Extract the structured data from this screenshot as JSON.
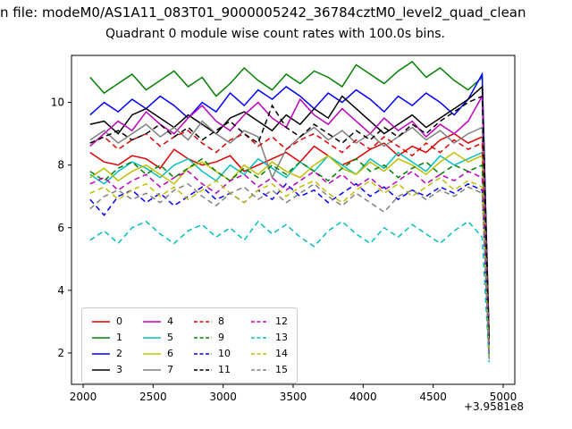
{
  "header": {
    "file_line": "n file: modeM0/AS1A11_083T01_9000005242_36784cztM0_level2_quad_clean"
  },
  "chart_data": {
    "type": "line",
    "title": "Quadrant 0 module wise count rates with 100.0s bins.",
    "xlabel": "",
    "ylabel": "",
    "x_offset_label": "+3.9581e8",
    "xlim": [
      1917,
      5083
    ],
    "ylim": [
      1.0,
      11.5
    ],
    "xticks": [
      2000,
      2500,
      3000,
      3500,
      4000,
      4500,
      5000
    ],
    "yticks": [
      2,
      4,
      6,
      8,
      10
    ],
    "grid": false,
    "legend": {
      "position": "lower-left",
      "ncol": 4,
      "fill_order": "column-major"
    },
    "x": [
      2050,
      2150,
      2250,
      2350,
      2450,
      2550,
      2650,
      2750,
      2850,
      2950,
      3050,
      3150,
      3250,
      3350,
      3450,
      3550,
      3650,
      3750,
      3850,
      3950,
      4050,
      4150,
      4250,
      4350,
      4450,
      4550,
      4650,
      4750,
      4850,
      4900
    ],
    "series": [
      {
        "name": "0",
        "color": "#e00000",
        "style": "solid",
        "values": [
          8.4,
          8.1,
          8.0,
          8.3,
          8.2,
          7.9,
          8.5,
          8.2,
          8.0,
          8.1,
          8.3,
          7.8,
          8.0,
          8.2,
          8.4,
          8.1,
          8.6,
          8.3,
          8.0,
          8.2,
          8.5,
          8.7,
          8.3,
          8.6,
          8.4,
          8.8,
          9.0,
          8.7,
          8.9,
          2.3
        ]
      },
      {
        "name": "1",
        "color": "#008000",
        "style": "solid",
        "values": [
          10.8,
          10.3,
          10.6,
          10.9,
          10.4,
          10.7,
          11.0,
          10.5,
          10.8,
          10.2,
          10.6,
          11.1,
          10.7,
          10.4,
          10.9,
          10.6,
          11.0,
          10.8,
          10.5,
          11.2,
          10.9,
          10.6,
          11.0,
          11.3,
          10.8,
          11.1,
          10.7,
          10.4,
          10.8,
          2.5
        ]
      },
      {
        "name": "2",
        "color": "#0000ff",
        "style": "solid",
        "values": [
          9.6,
          10.0,
          9.7,
          10.1,
          9.8,
          10.2,
          9.9,
          9.5,
          10.0,
          9.7,
          10.3,
          9.9,
          10.4,
          10.1,
          10.5,
          10.2,
          9.8,
          10.3,
          10.0,
          10.4,
          10.1,
          9.7,
          10.2,
          9.9,
          10.3,
          10.0,
          9.6,
          10.1,
          10.9,
          2.2
        ]
      },
      {
        "name": "3",
        "color": "#000000",
        "style": "solid",
        "values": [
          9.3,
          9.4,
          9.0,
          9.6,
          9.8,
          9.5,
          9.2,
          9.6,
          9.3,
          9.0,
          9.5,
          9.7,
          9.4,
          9.1,
          9.6,
          9.3,
          9.8,
          9.5,
          10.2,
          9.8,
          9.4,
          9.0,
          9.3,
          9.6,
          9.2,
          9.5,
          9.8,
          10.1,
          10.5,
          2.4
        ]
      },
      {
        "name": "4",
        "color": "#bf00bf",
        "style": "solid",
        "values": [
          8.6,
          9.0,
          9.4,
          9.1,
          9.7,
          9.3,
          9.0,
          9.5,
          9.9,
          9.4,
          9.1,
          9.6,
          10.0,
          9.5,
          9.2,
          10.1,
          9.6,
          9.3,
          9.8,
          9.4,
          9.0,
          9.5,
          9.1,
          9.4,
          8.9,
          9.3,
          9.0,
          9.4,
          10.2,
          2.1
        ]
      },
      {
        "name": "5",
        "color": "#00bfbf",
        "style": "solid",
        "values": [
          7.7,
          7.4,
          7.8,
          8.1,
          7.9,
          7.6,
          8.0,
          8.2,
          7.8,
          7.5,
          8.0,
          7.7,
          8.2,
          7.9,
          7.6,
          8.1,
          7.8,
          8.3,
          8.0,
          7.7,
          8.2,
          7.9,
          8.4,
          8.1,
          7.8,
          8.3,
          8.0,
          8.2,
          8.4,
          2.0
        ]
      },
      {
        "name": "6",
        "color": "#bfbf00",
        "style": "solid",
        "values": [
          7.6,
          7.9,
          7.5,
          7.8,
          8.0,
          7.7,
          7.4,
          7.9,
          8.1,
          7.8,
          7.5,
          8.0,
          7.7,
          8.1,
          7.8,
          7.6,
          8.0,
          8.3,
          7.9,
          7.7,
          8.1,
          7.8,
          8.2,
          8.0,
          7.7,
          8.1,
          8.4,
          8.1,
          8.3,
          2.1
        ]
      },
      {
        "name": "7",
        "color": "#808080",
        "style": "solid",
        "values": [
          8.8,
          9.1,
          8.7,
          9.0,
          9.3,
          8.9,
          9.2,
          8.8,
          9.4,
          9.0,
          8.7,
          9.1,
          8.9,
          7.6,
          8.5,
          8.9,
          9.2,
          8.8,
          9.1,
          8.7,
          9.0,
          8.6,
          8.9,
          9.2,
          8.8,
          9.1,
          8.7,
          9.0,
          9.2,
          2.2
        ]
      },
      {
        "name": "8",
        "color": "#e00000",
        "style": "dashed",
        "values": [
          8.7,
          8.9,
          8.5,
          8.8,
          9.0,
          8.6,
          8.9,
          9.1,
          8.7,
          8.4,
          8.8,
          9.0,
          8.6,
          8.9,
          8.5,
          8.8,
          9.0,
          8.7,
          8.4,
          8.8,
          8.5,
          8.9,
          8.6,
          8.3,
          8.7,
          8.4,
          8.8,
          8.5,
          8.7,
          2.0
        ]
      },
      {
        "name": "9",
        "color": "#008000",
        "style": "dashed",
        "values": [
          7.8,
          7.5,
          7.9,
          8.1,
          7.7,
          8.0,
          7.6,
          7.9,
          8.2,
          7.8,
          7.5,
          7.9,
          7.6,
          8.0,
          7.7,
          8.1,
          7.8,
          7.5,
          7.9,
          8.2,
          7.8,
          8.0,
          7.6,
          7.9,
          8.1,
          7.7,
          8.0,
          7.8,
          8.0,
          1.9
        ]
      },
      {
        "name": "10",
        "color": "#0000ff",
        "style": "dashed",
        "values": [
          6.9,
          6.4,
          7.0,
          7.2,
          6.8,
          7.1,
          6.7,
          7.0,
          7.3,
          6.9,
          7.1,
          6.8,
          7.2,
          6.9,
          7.4,
          7.0,
          7.2,
          6.8,
          7.1,
          7.4,
          7.0,
          7.3,
          6.9,
          7.2,
          7.0,
          7.3,
          7.1,
          7.4,
          7.2,
          1.8
        ]
      },
      {
        "name": "11",
        "color": "#000000",
        "style": "dashed",
        "values": [
          8.7,
          8.9,
          9.1,
          8.8,
          9.0,
          9.3,
          8.9,
          9.2,
          8.8,
          9.1,
          9.4,
          9.0,
          8.7,
          9.9,
          9.2,
          8.9,
          9.3,
          9.0,
          8.7,
          9.1,
          8.8,
          9.2,
          8.9,
          9.3,
          9.0,
          9.4,
          9.7,
          10.0,
          10.2,
          2.3
        ]
      },
      {
        "name": "12",
        "color": "#bf00bf",
        "style": "dashed",
        "values": [
          7.4,
          7.6,
          7.2,
          7.5,
          7.7,
          7.3,
          7.6,
          7.8,
          7.4,
          7.1,
          7.5,
          7.7,
          7.3,
          7.6,
          7.2,
          7.5,
          7.8,
          7.4,
          7.7,
          7.3,
          7.6,
          7.2,
          7.5,
          7.8,
          7.4,
          7.7,
          7.5,
          7.8,
          7.6,
          1.9
        ]
      },
      {
        "name": "13",
        "color": "#00bfbf",
        "style": "dashed",
        "values": [
          5.6,
          5.9,
          5.5,
          6.0,
          6.2,
          5.8,
          5.5,
          5.9,
          6.1,
          5.7,
          6.0,
          5.6,
          6.2,
          5.8,
          6.1,
          5.7,
          5.4,
          5.9,
          6.2,
          5.8,
          5.5,
          6.0,
          5.7,
          6.1,
          5.8,
          5.5,
          5.9,
          6.2,
          5.7,
          1.7
        ]
      },
      {
        "name": "14",
        "color": "#bfbf00",
        "style": "dashed",
        "values": [
          7.1,
          7.3,
          6.9,
          7.2,
          7.4,
          7.0,
          7.3,
          6.9,
          7.2,
          7.5,
          7.1,
          6.8,
          7.2,
          7.4,
          7.0,
          7.3,
          7.5,
          7.1,
          6.8,
          7.2,
          7.5,
          7.1,
          7.4,
          7.0,
          7.3,
          7.6,
          7.2,
          7.5,
          7.3,
          1.9
        ]
      },
      {
        "name": "15",
        "color": "#808080",
        "style": "dashed",
        "values": [
          6.6,
          7.0,
          7.2,
          6.9,
          7.1,
          6.8,
          7.2,
          7.4,
          7.0,
          6.7,
          7.1,
          7.3,
          6.9,
          7.2,
          6.8,
          7.1,
          7.4,
          7.0,
          6.7,
          7.1,
          6.8,
          6.5,
          7.0,
          7.2,
          6.9,
          7.2,
          7.0,
          7.3,
          7.1,
          1.8
        ]
      }
    ]
  }
}
